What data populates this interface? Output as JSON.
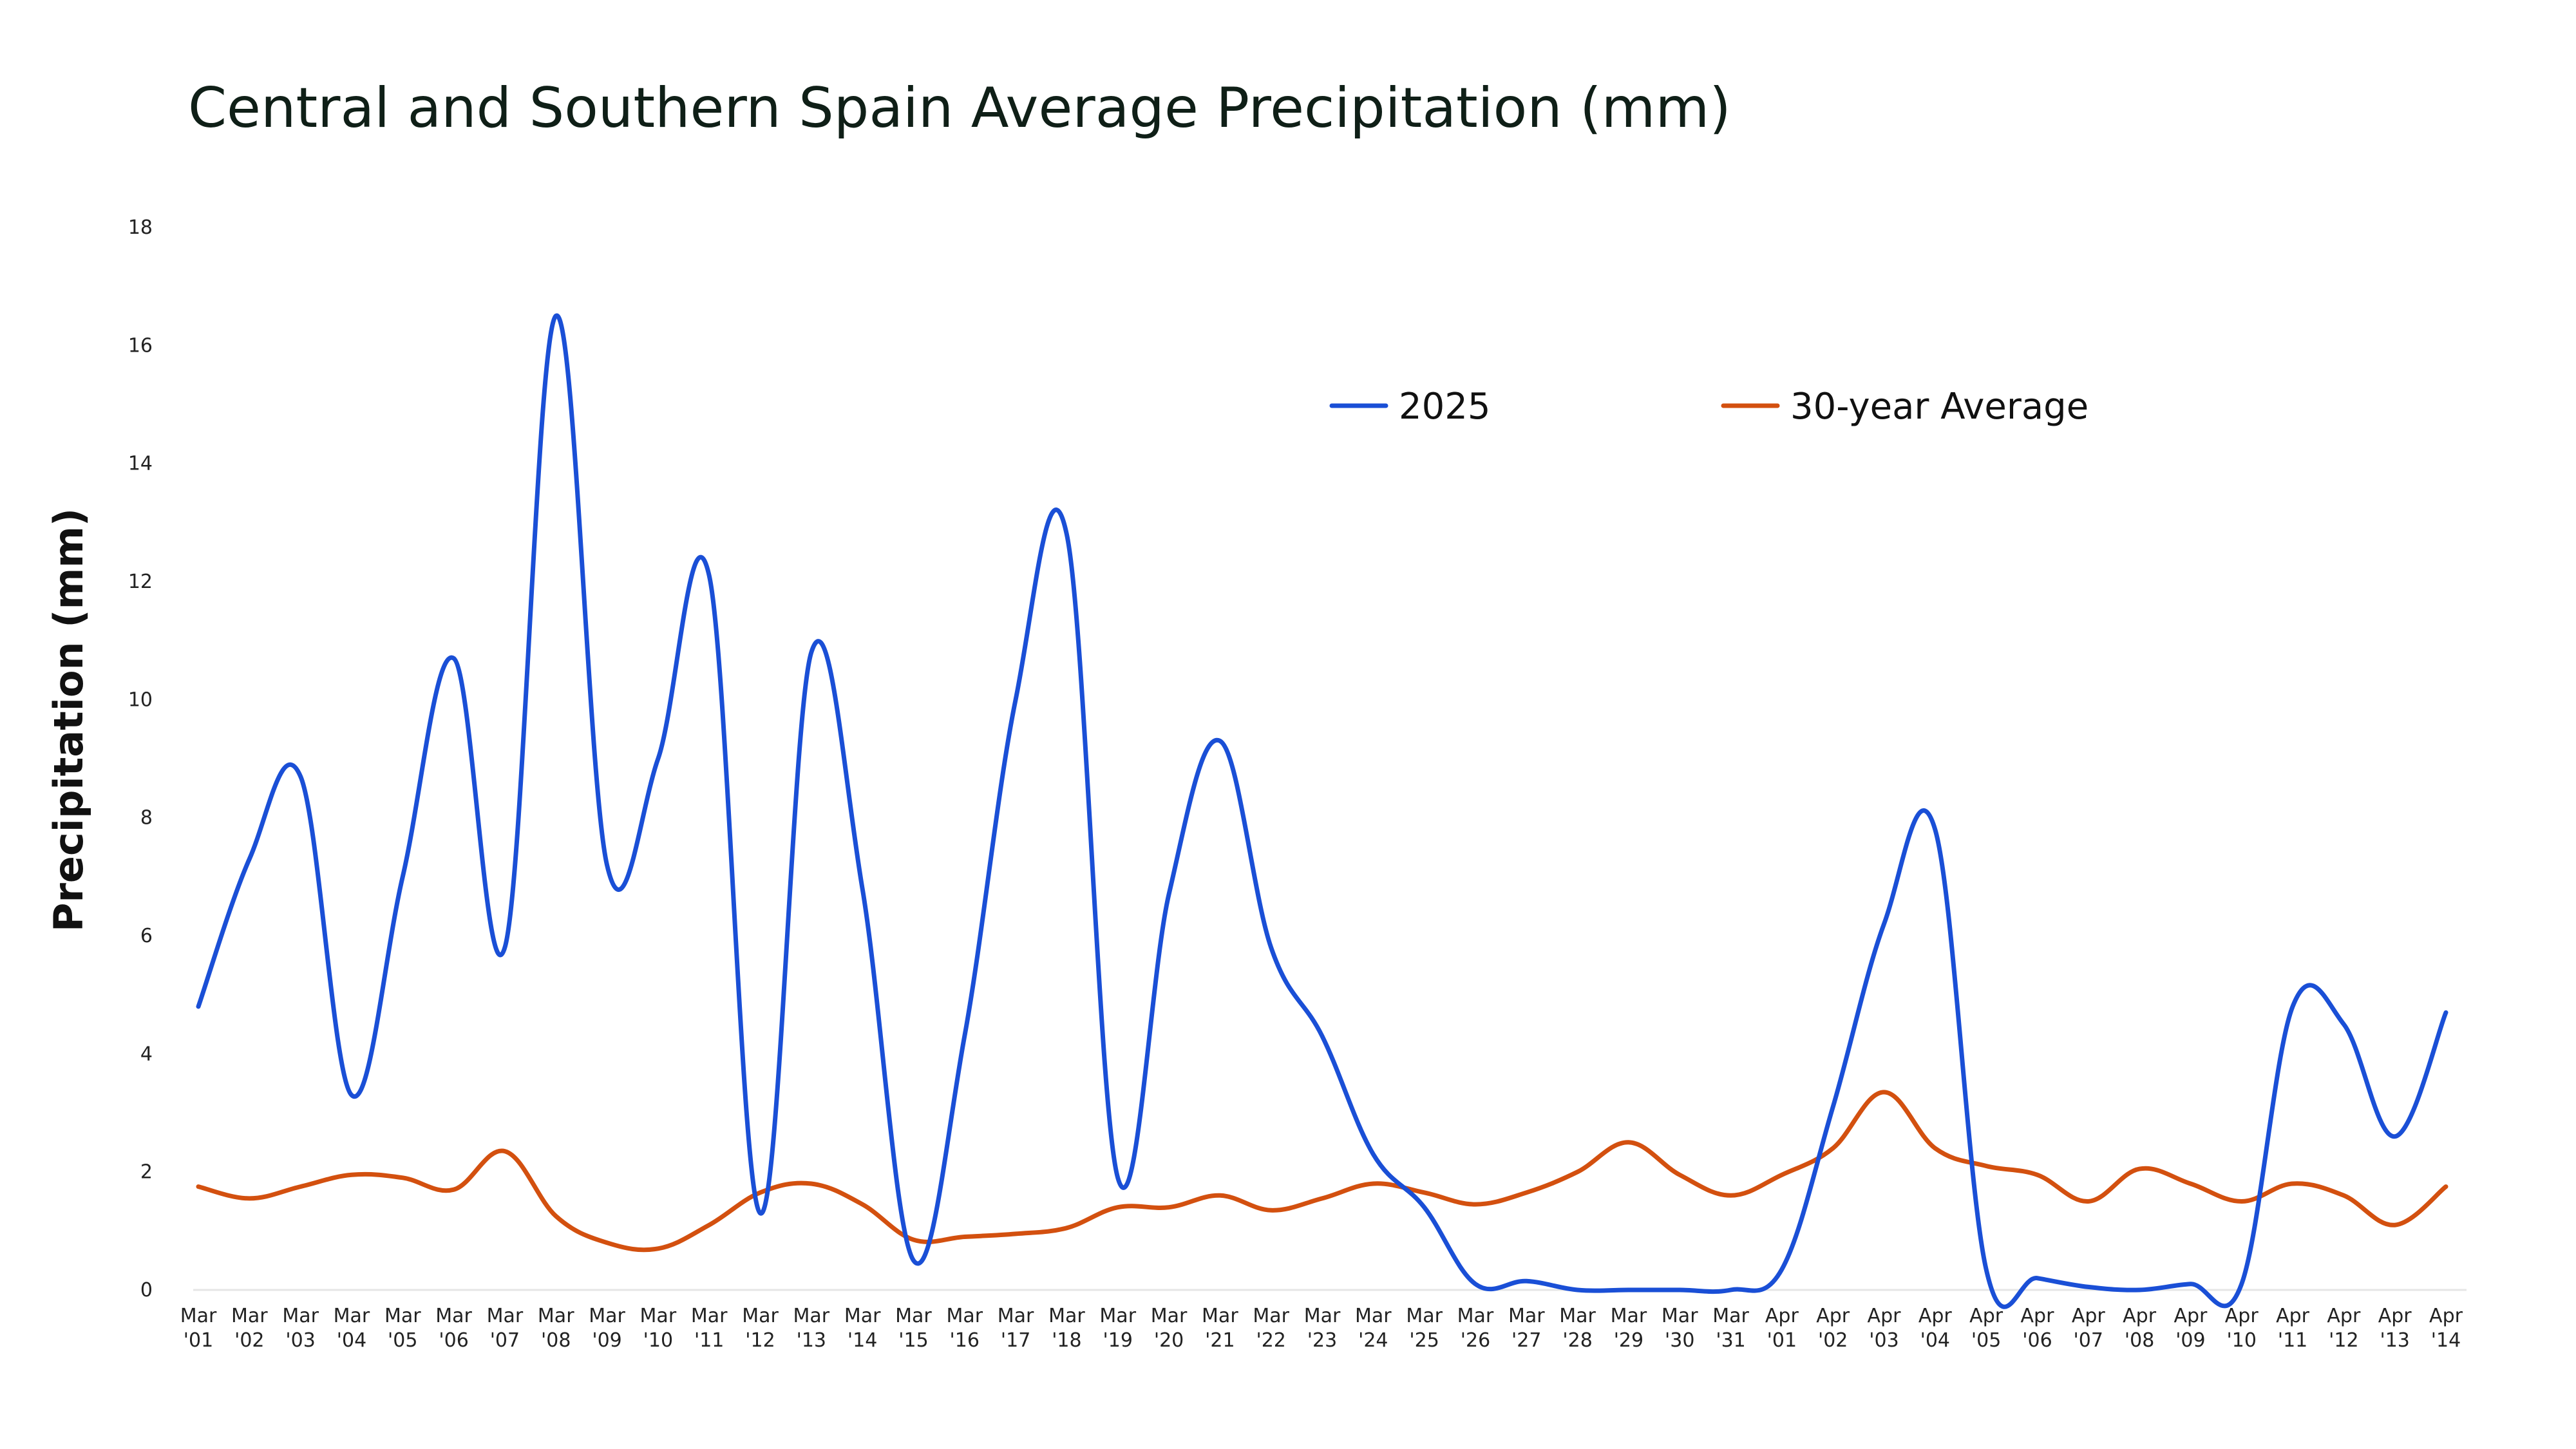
{
  "chart_data": {
    "type": "line",
    "title": "Central and Southern Spain Average Precipitation (mm)",
    "xlabel": "",
    "ylabel": "Precipitation (mm)",
    "ylim": [
      0,
      18
    ],
    "yticks": [
      0,
      2,
      4,
      6,
      8,
      10,
      12,
      14,
      16,
      18
    ],
    "grid": false,
    "legend_position": "top-center",
    "categories": [
      [
        "Mar",
        "'01"
      ],
      [
        "Mar",
        "'02"
      ],
      [
        "Mar",
        "'03"
      ],
      [
        "Mar",
        "'04"
      ],
      [
        "Mar",
        "'05"
      ],
      [
        "Mar",
        "'06"
      ],
      [
        "Mar",
        "'07"
      ],
      [
        "Mar",
        "'08"
      ],
      [
        "Mar",
        "'09"
      ],
      [
        "Mar",
        "'10"
      ],
      [
        "Mar",
        "'11"
      ],
      [
        "Mar",
        "'12"
      ],
      [
        "Mar",
        "'13"
      ],
      [
        "Mar",
        "'14"
      ],
      [
        "Mar",
        "'15"
      ],
      [
        "Mar",
        "'16"
      ],
      [
        "Mar",
        "'17"
      ],
      [
        "Mar",
        "'18"
      ],
      [
        "Mar",
        "'19"
      ],
      [
        "Mar",
        "'20"
      ],
      [
        "Mar",
        "'21"
      ],
      [
        "Mar",
        "'22"
      ],
      [
        "Mar",
        "'23"
      ],
      [
        "Mar",
        "'24"
      ],
      [
        "Mar",
        "'25"
      ],
      [
        "Mar",
        "'26"
      ],
      [
        "Mar",
        "'27"
      ],
      [
        "Mar",
        "'28"
      ],
      [
        "Mar",
        "'29"
      ],
      [
        "Mar",
        "'30"
      ],
      [
        "Mar",
        "'31"
      ],
      [
        "Apr",
        "'01"
      ],
      [
        "Apr",
        "'02"
      ],
      [
        "Apr",
        "'03"
      ],
      [
        "Apr",
        "'04"
      ],
      [
        "Apr",
        "'05"
      ],
      [
        "Apr",
        "'06"
      ],
      [
        "Apr",
        "'07"
      ],
      [
        "Apr",
        "'08"
      ],
      [
        "Apr",
        "'09"
      ],
      [
        "Apr",
        "'10"
      ],
      [
        "Apr",
        "'11"
      ],
      [
        "Apr",
        "'12"
      ],
      [
        "Apr",
        "'13"
      ],
      [
        "Apr",
        "'14"
      ]
    ],
    "series": [
      {
        "name": "2025",
        "color": "#1a4fd6",
        "values": [
          4.8,
          7.3,
          8.7,
          3.3,
          7.0,
          10.7,
          5.8,
          16.5,
          7.2,
          9.0,
          12.1,
          1.3,
          10.8,
          6.8,
          0.5,
          4.3,
          10.0,
          12.8,
          1.9,
          6.7,
          9.3,
          5.8,
          4.3,
          2.3,
          1.4,
          0.1,
          0.15,
          0.0,
          0.0,
          0.0,
          0.0,
          0.35,
          3.1,
          6.2,
          7.8,
          0.35,
          0.2,
          0.05,
          0.0,
          0.1,
          0.1,
          4.8,
          4.5,
          2.6,
          4.7
        ]
      },
      {
        "name": "30-year Average",
        "color": "#d3500f",
        "values": [
          1.75,
          1.55,
          1.75,
          1.95,
          1.9,
          1.7,
          2.35,
          1.25,
          0.8,
          0.7,
          1.1,
          1.65,
          1.8,
          1.45,
          0.85,
          0.9,
          0.95,
          1.05,
          1.4,
          1.4,
          1.6,
          1.35,
          1.55,
          1.8,
          1.65,
          1.45,
          1.65,
          2.0,
          2.5,
          1.95,
          1.6,
          1.95,
          2.4,
          3.35,
          2.4,
          2.1,
          1.95,
          1.5,
          2.05,
          1.8,
          1.5,
          1.8,
          1.6,
          1.1,
          1.75
        ]
      }
    ]
  }
}
